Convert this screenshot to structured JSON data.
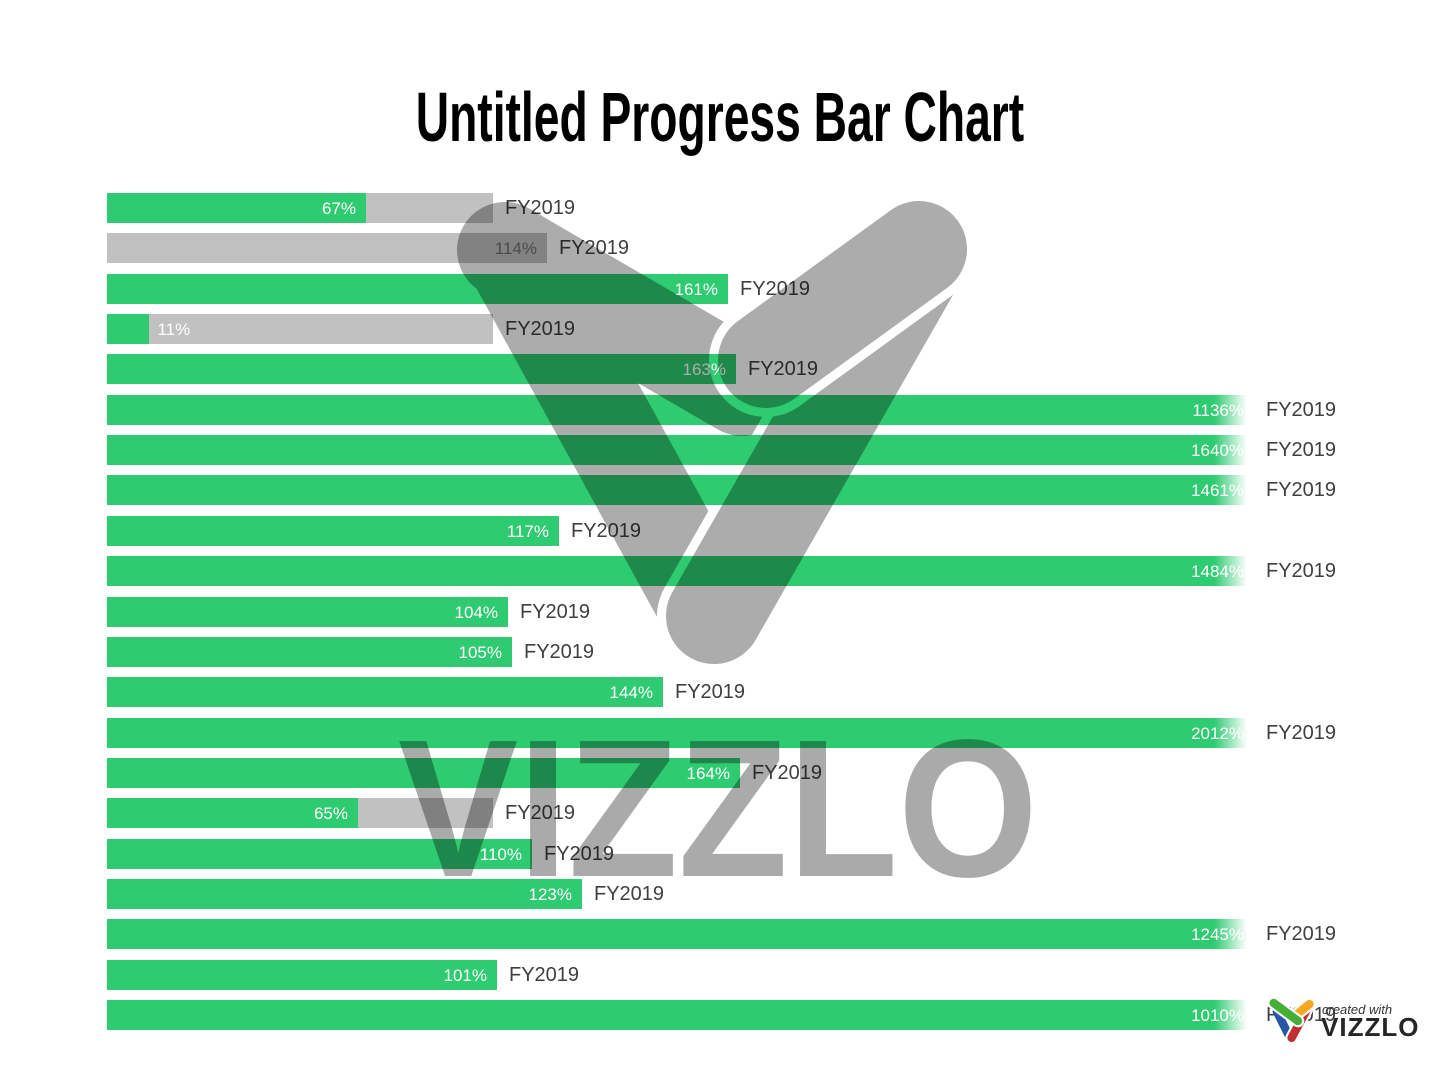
{
  "title": "Untitled Progress Bar Chart",
  "watermark": {
    "logo_text": "VIZZLO"
  },
  "badge": {
    "created_with": "created with",
    "brand": "VIZZLO"
  },
  "colors": {
    "bar_green": "#2ecb71",
    "bar_gray": "#c1c1c1",
    "track_gray": "#c1c1c1",
    "fy_label": "#3f3f3f",
    "value_label_light": "#ffffff",
    "value_label_dark": "#6f6f6f",
    "title_black": "#000000",
    "badge_green": "#45ae35",
    "badge_orange": "#f7a823",
    "badge_blue": "#2656a5",
    "badge_red": "#c02d33"
  },
  "chart_data": {
    "type": "bar",
    "subtype": "progress-bar",
    "title": "Untitled Progress Bar Chart",
    "value_suffix": "%",
    "categories": [
      "FY2019",
      "FY2019",
      "FY2019",
      "FY2019",
      "FY2019",
      "FY2019",
      "FY2019",
      "FY2019",
      "FY2019",
      "FY2019",
      "FY2019",
      "FY2019",
      "FY2019",
      "FY2019",
      "FY2019",
      "FY2019",
      "FY2019",
      "FY2019",
      "FY2019",
      "FY2019",
      "FY2019"
    ],
    "values": [
      67,
      114,
      161,
      11,
      163,
      1136,
      1640,
      1461,
      117,
      1484,
      104,
      105,
      144,
      2012,
      164,
      65,
      110,
      123,
      1245,
      101,
      1010
    ],
    "bar_styles": [
      "green",
      "gray",
      "green",
      "green",
      "green",
      "green",
      "green",
      "green",
      "green",
      "green",
      "green",
      "green",
      "green",
      "green",
      "green",
      "green",
      "green",
      "green",
      "green",
      "green",
      "green"
    ],
    "track_full_percent": 100,
    "clip_at_percent": 297,
    "grid": false,
    "legend": "none"
  }
}
